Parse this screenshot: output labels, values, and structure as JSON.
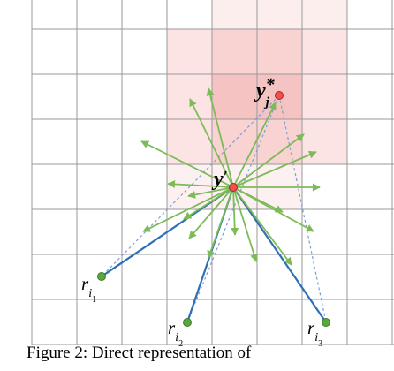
{
  "points": [
    {
      "label": "y",
      "mark": "′",
      "sub": "j",
      "sup": "*"
    },
    {
      "label": "y",
      "mark": "′"
    },
    {
      "label": "r",
      "sub": "i",
      "subsub": "1"
    },
    {
      "label": "r",
      "sub": "i",
      "subsub": "2"
    },
    {
      "label": "r",
      "sub": "i",
      "subsub": "3"
    }
  ],
  "caption": "Figure 2: Direct representation of"
}
